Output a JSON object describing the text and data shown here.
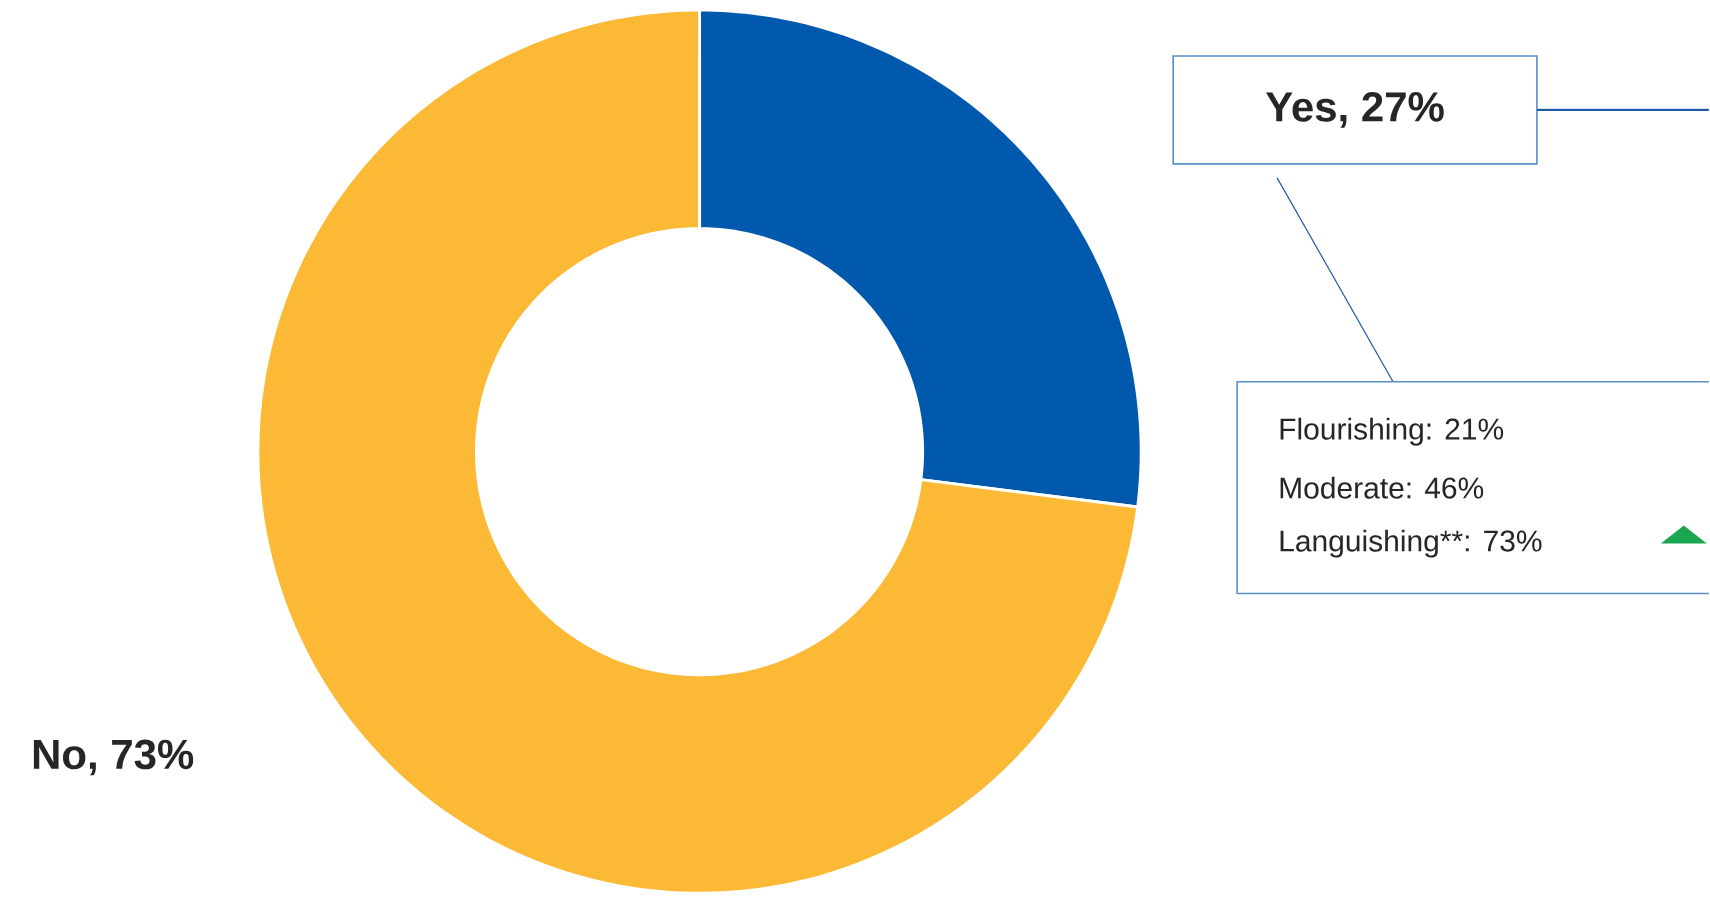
{
  "chart_data": {
    "type": "donut",
    "categories": [
      null,
      null
    ],
    "values": [
      27,
      73
    ],
    "colors": [
      "#0059ac",
      "#fbb935"
    ],
    "value_labels": [
      "Yes, 27%",
      "No, 73%"
    ],
    "annotations": [
      "Flourishing: 21%",
      "Moderate: 46%",
      "Languishing**: 73%"
    ]
  }
}
